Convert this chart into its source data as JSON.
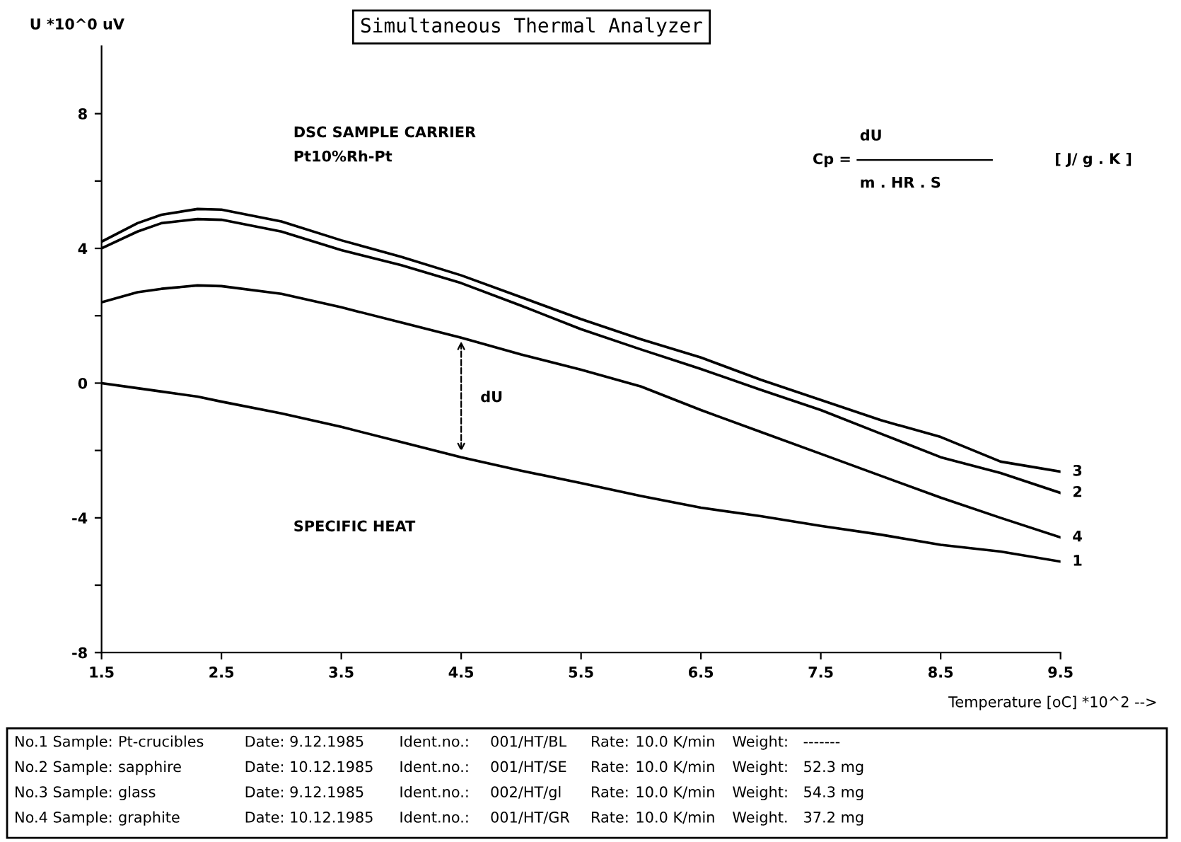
{
  "chart_data": {
    "type": "line",
    "title": "Simultaneous Thermal Analyzer",
    "xlabel": "Temperature [oC] *10^2 -->",
    "ylabel": "U *10^0 uV",
    "xlim": [
      1.5,
      9.5
    ],
    "ylim": [
      -8,
      10
    ],
    "xticks": [
      1.5,
      2.5,
      3.5,
      4.5,
      5.5,
      6.5,
      7.5,
      8.5,
      9.5
    ],
    "yticks": [
      -8,
      {
        "value": -6,
        "label": null
      },
      -4,
      {
        "value": -2,
        "label": null
      },
      0,
      {
        "value": 2,
        "label": null
      },
      4,
      {
        "value": 6,
        "label": null
      },
      8
    ],
    "grid": false,
    "legend": false,
    "marker": "none",
    "line_style": "solid",
    "x": [
      1.5,
      1.8,
      2.0,
      2.3,
      2.5,
      3.0,
      3.5,
      4.0,
      4.5,
      5.0,
      5.5,
      6.0,
      6.5,
      7.0,
      7.5,
      8.0,
      8.5,
      9.0,
      9.5
    ],
    "series": [
      {
        "name": "1",
        "color": "#000000",
        "values": [
          0.0,
          -0.15,
          -0.25,
          -0.4,
          -0.55,
          -0.9,
          -1.3,
          -1.75,
          -2.2,
          -2.6,
          -2.97,
          -3.35,
          -3.7,
          -3.95,
          -4.24,
          -4.5,
          -4.8,
          -5.0,
          -5.3
        ]
      },
      {
        "name": "2",
        "color": "#000000",
        "values": [
          4.0,
          4.5,
          4.75,
          4.87,
          4.85,
          4.5,
          3.95,
          3.5,
          2.97,
          2.3,
          1.6,
          1.0,
          0.42,
          -0.2,
          -0.8,
          -1.5,
          -2.2,
          -2.67,
          -3.26
        ]
      },
      {
        "name": "3",
        "color": "#000000",
        "values": [
          4.2,
          4.75,
          5.0,
          5.17,
          5.15,
          4.8,
          4.24,
          3.75,
          3.2,
          2.55,
          1.9,
          1.3,
          0.76,
          0.1,
          -0.5,
          -1.1,
          -1.6,
          -2.33,
          -2.63
        ]
      },
      {
        "name": "4",
        "color": "#000000",
        "values": [
          2.4,
          2.7,
          2.8,
          2.9,
          2.88,
          2.65,
          2.25,
          1.8,
          1.35,
          0.85,
          0.4,
          -0.1,
          -0.8,
          -1.45,
          -2.1,
          -2.75,
          -3.4,
          -4.0,
          -4.58
        ]
      }
    ],
    "annotations": [
      "DSC SAMPLE CARRIER",
      "Pt10%Rh-Pt",
      "SPECIFIC HEAT",
      "dU",
      "Cp =",
      "dU",
      "m . HR . S",
      "[ J/ g . K ]",
      "No.1 Sample:",
      "Pt-crucibles",
      "Date:",
      "9.12.1985",
      "Ident.no.:",
      "001/HT/BL",
      "Rate:",
      "10.0 K/min",
      "Weight:",
      "-------",
      "No.2 Sample:",
      "sapphire",
      "Date:",
      "10.12.1985",
      "Ident.no.:",
      "001/HT/SE",
      "Rate:",
      "10.0 K/min",
      "Weight:",
      "52.3 mg",
      "No.3 Sample:",
      "glass",
      "Date:",
      "9.12.1985",
      "Ident.no.:",
      "002/HT/gl",
      "Rate:",
      "10.0 K/min",
      "Weight:",
      "54.3 mg",
      "No.4 Sample:",
      "graphite",
      "Date:",
      "10.12.1985",
      "Ident.no.:",
      "001/HT/GR",
      "Rate:",
      "10.0 K/min",
      "Weight.",
      "37.2 mg"
    ]
  }
}
